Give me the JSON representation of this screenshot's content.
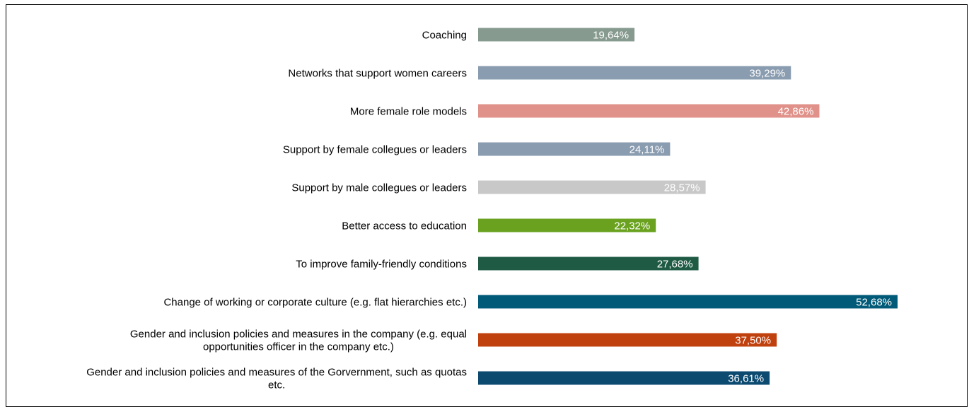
{
  "chart_data": {
    "type": "bar",
    "orientation": "horizontal",
    "categories": [
      "Coaching",
      "Networks that support women careers",
      "More female role models",
      "Support by female collegues or leaders",
      "Support by male collegues or leaders",
      "Better access to education",
      "To improve family-friendly conditions",
      "Change of working or corporate culture (e.g. flat hierarchies etc.)",
      "Gender and inclusion policies and measures in the company (e.g. equal opportunities officer in the company etc.)",
      "Gender and inclusion policies and measures of the Gorvernment, such as quotas etc."
    ],
    "category_lines": [
      [
        "Coaching"
      ],
      [
        "Networks that support women careers"
      ],
      [
        "More female role models"
      ],
      [
        "Support by female collegues or leaders"
      ],
      [
        "Support by male collegues or leaders"
      ],
      [
        "Better access to education"
      ],
      [
        "To improve family-friendly conditions"
      ],
      [
        "Change of working or corporate culture (e.g. flat hierarchies etc.)"
      ],
      [
        "Gender and inclusion policies and measures in the company (e.g. equal",
        "opportunities officer in the company etc.)"
      ],
      [
        "Gender and inclusion policies and measures of the Gorvernment, such as quotas",
        "etc."
      ]
    ],
    "values": [
      19.64,
      39.29,
      42.86,
      24.11,
      28.57,
      22.32,
      27.68,
      52.68,
      37.5,
      36.61
    ],
    "value_labels": [
      "19,64%",
      "39,29%",
      "42,86%",
      "24,11%",
      "28,57%",
      "22,32%",
      "27,68%",
      "52,68%",
      "37,50%",
      "36,61%"
    ],
    "colors": [
      "#879a8f",
      "#8a9cb0",
      "#e0918a",
      "#8a9cb0",
      "#c8c8c8",
      "#6aa220",
      "#1e5a44",
      "#005a78",
      "#c0400e",
      "#0c4a70"
    ],
    "xlim": [
      0,
      60
    ],
    "grid": false,
    "legend": "none"
  }
}
